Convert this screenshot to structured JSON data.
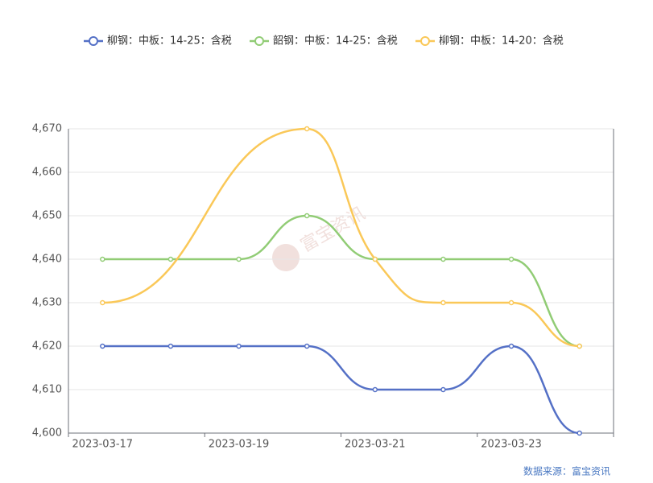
{
  "chart_data": {
    "type": "line",
    "categories": [
      "2023-03-17",
      null,
      "2023-03-19",
      null,
      "2023-03-21",
      null,
      "2023-03-23",
      null
    ],
    "series": [
      {
        "name": "柳钢：中板：14-25：含税",
        "color": "#5470c6",
        "values": [
          4620,
          4620,
          4620,
          4620,
          4610,
          4610,
          4620,
          4600
        ]
      },
      {
        "name": "韶钢：中板：14-25：含税",
        "color": "#91cc75",
        "values": [
          4640,
          4640,
          4640,
          4650,
          4640,
          4640,
          4640,
          4620
        ]
      },
      {
        "name": "柳钢：中板：14-20：含税",
        "color": "#fac858",
        "values": [
          4630,
          null,
          null,
          4670,
          4640,
          4630,
          4630,
          4620
        ]
      }
    ],
    "connect_nulls": true,
    "smooth": true,
    "ylim": [
      4600,
      4670
    ],
    "yticks": [
      {
        "value": 4600,
        "label": "4,600"
      },
      {
        "value": 4610,
        "label": "4,610"
      },
      {
        "value": 4620,
        "label": "4,620"
      },
      {
        "value": 4630,
        "label": "4,630"
      },
      {
        "value": 4640,
        "label": "4,640"
      },
      {
        "value": 4650,
        "label": "4,650"
      },
      {
        "value": 4660,
        "label": "4,660"
      },
      {
        "value": 4670,
        "label": "4,670"
      }
    ],
    "grid": true,
    "legend": "top",
    "watermark": "富宝资讯",
    "source": "数据来源：富宝资讯"
  }
}
